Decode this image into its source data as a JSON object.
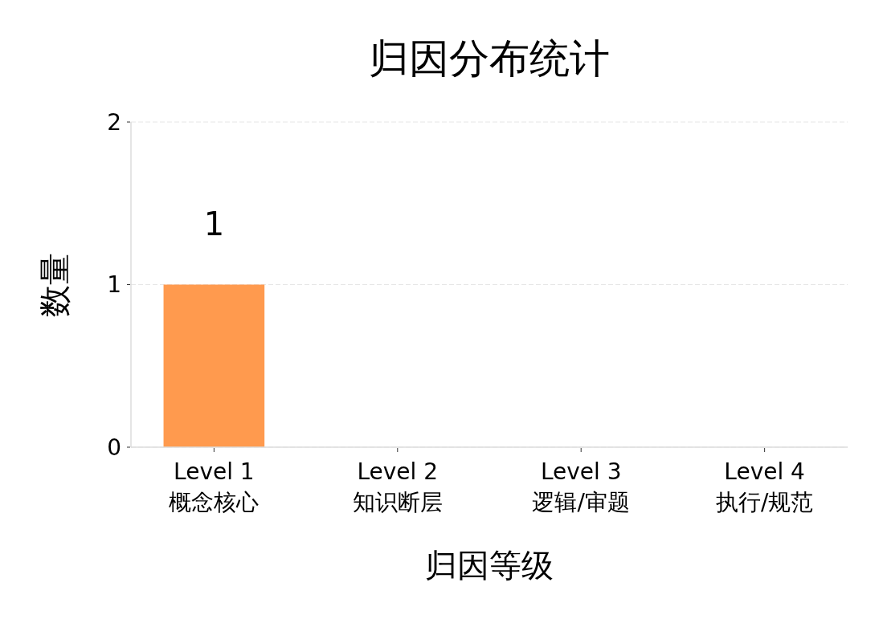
{
  "chart_data": {
    "type": "bar",
    "title": "归因分布统计",
    "xlabel": "归因等级",
    "ylabel": "数量",
    "categories": [
      "Level 1\n概念核心",
      "Level 2\n知识断层",
      "Level 3\n逻辑/审题",
      "Level 4\n执行/规范"
    ],
    "values": [
      1,
      0,
      0,
      0
    ],
    "value_labels": [
      "1",
      null,
      null,
      null
    ],
    "color": "#ff9a4e",
    "ylim": [
      0,
      2
    ],
    "yticks": [
      0,
      1,
      2
    ],
    "grid": "y"
  }
}
